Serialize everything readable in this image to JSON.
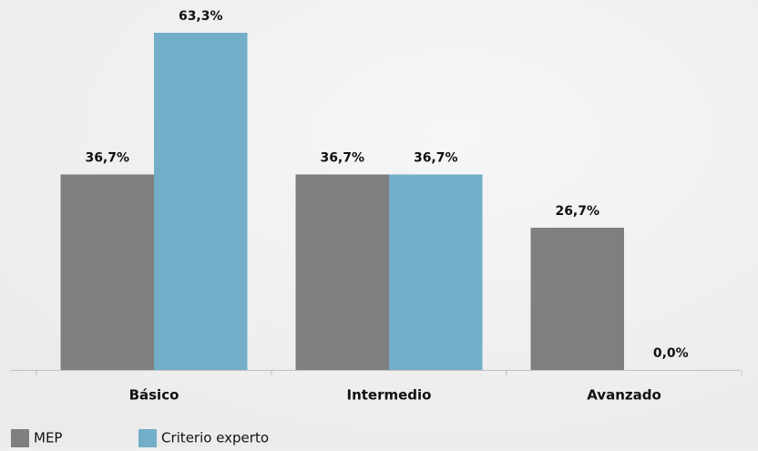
{
  "chart_data": {
    "type": "bar",
    "categories": [
      "Básico",
      "Intermedio",
      "Avanzado"
    ],
    "series": [
      {
        "name": "MEP",
        "color": "#7f7f81",
        "values": [
          36.7,
          36.7,
          26.7
        ],
        "value_labels": [
          "36,7%",
          "36,7%",
          "26,7%"
        ]
      },
      {
        "name": "Criterio experto",
        "color": "#72aec8",
        "values": [
          63.3,
          36.7,
          0.0
        ],
        "value_labels": [
          "63,3%",
          "36,7%",
          "0,0%"
        ]
      }
    ]
  }
}
